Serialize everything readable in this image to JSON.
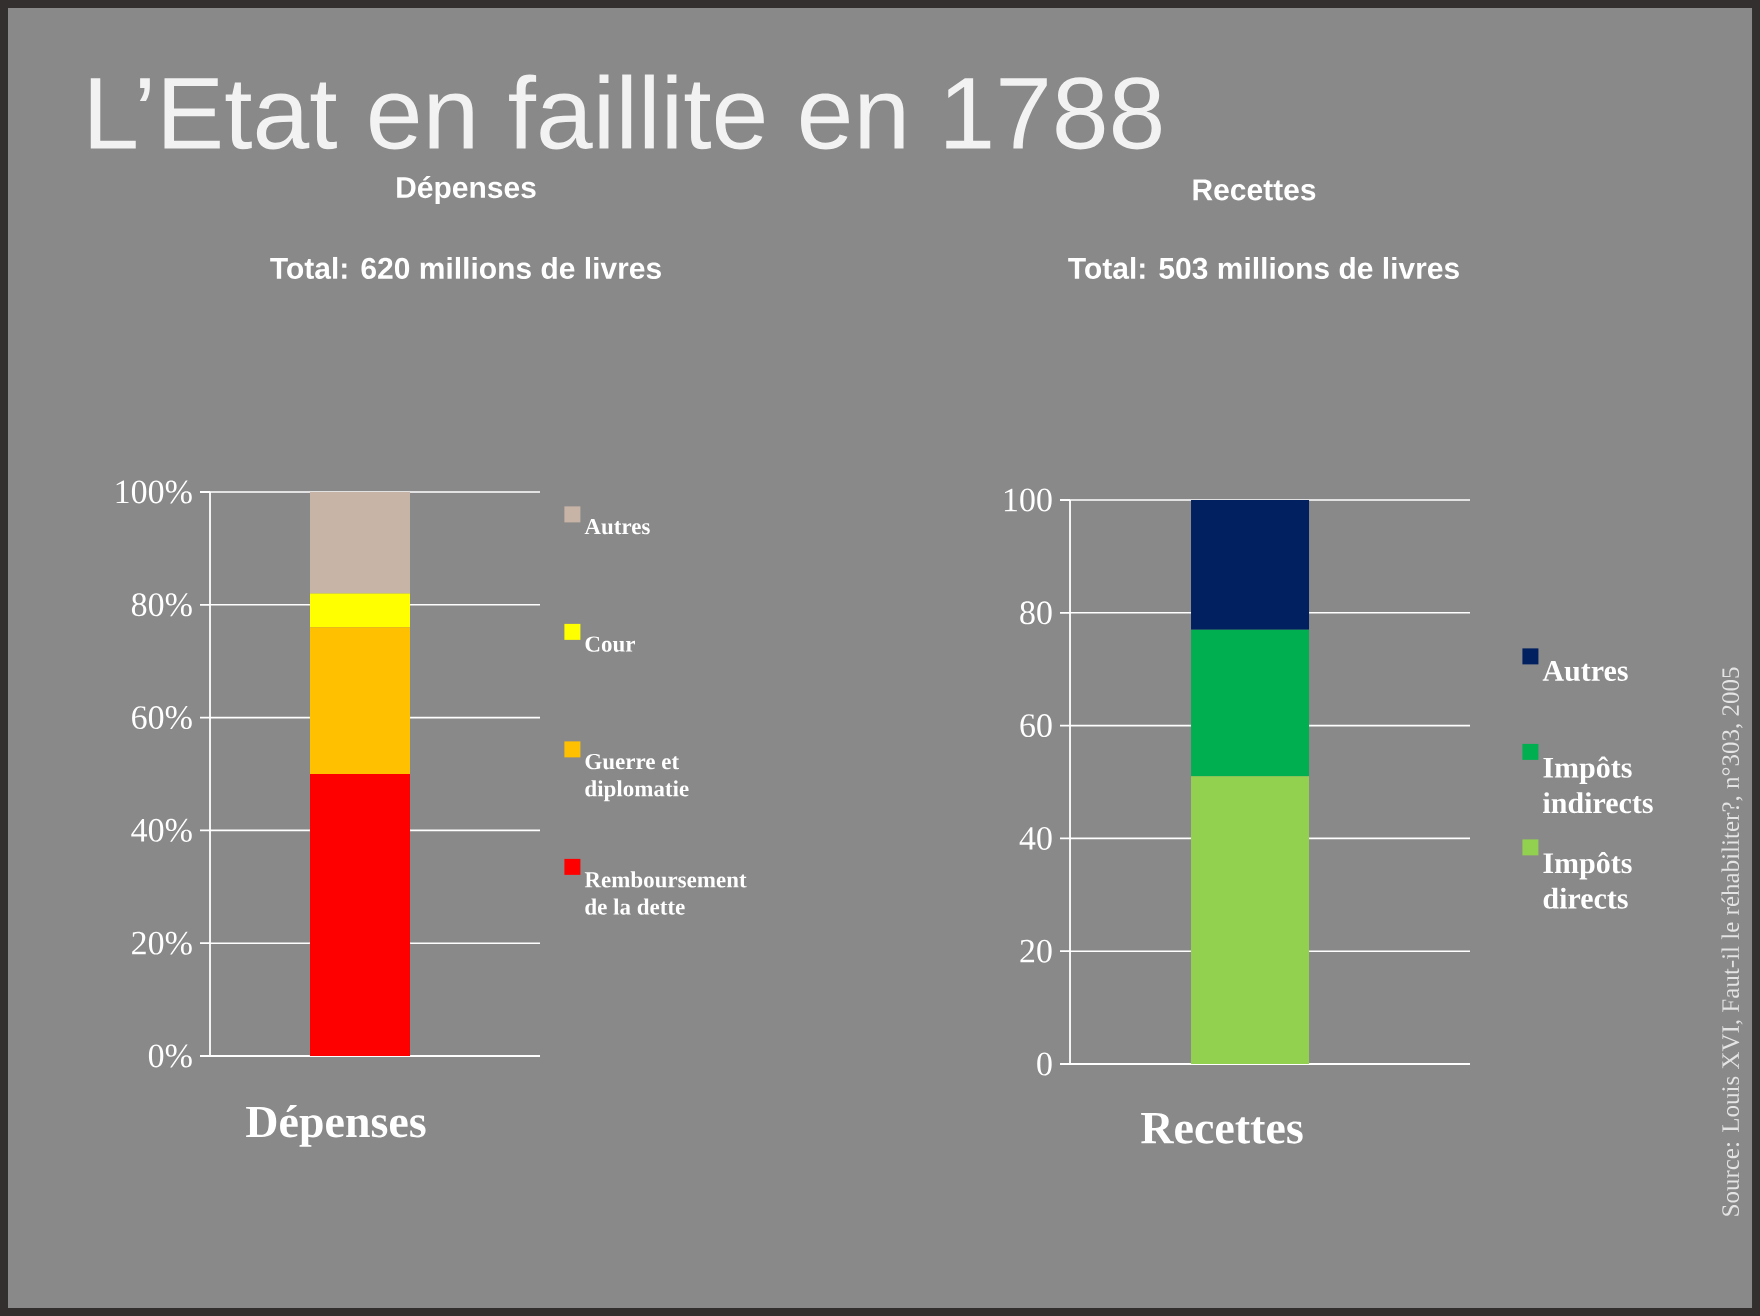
{
  "chart_data": [
    {
      "type": "bar",
      "title": "Dépenses",
      "subtitle": "Total: 620 millions de livres",
      "categories": [
        "Dépenses"
      ],
      "stacked": true,
      "series": [
        {
          "name": "Remboursement de la dette",
          "color": "#ff0000",
          "values": [
            50
          ]
        },
        {
          "name": "Guerre et diplomatie",
          "color": "#ffc000",
          "values": [
            26
          ]
        },
        {
          "name": "Cour",
          "color": "#ffff00",
          "values": [
            6
          ]
        },
        {
          "name": "Autres",
          "color": "#c8b4a7",
          "values": [
            18
          ]
        }
      ],
      "ylim": [
        0,
        100
      ],
      "yticks": [
        {
          "value": 0,
          "label": "0%"
        },
        {
          "value": 20,
          "label": "20%"
        },
        {
          "value": 40,
          "label": "40%"
        },
        {
          "value": 60,
          "label": "60%"
        },
        {
          "value": 80,
          "label": "80%"
        },
        {
          "value": 100,
          "label": "100%"
        }
      ],
      "grid": "y",
      "legend": "right",
      "annotations": [
        "L’Etat en faillite en 1788"
      ]
    },
    {
      "type": "bar",
      "title": "Recettes",
      "subtitle": "Total: 503 millions de livres",
      "categories": [
        "Recettes"
      ],
      "stacked": true,
      "series": [
        {
          "name": "Impôts directs",
          "color": "#92d050",
          "values": [
            51
          ]
        },
        {
          "name": "Impôts indirects",
          "color": "#00b050",
          "values": [
            26
          ]
        },
        {
          "name": "Autres",
          "color": "#002060",
          "values": [
            23
          ]
        }
      ],
      "ylim": [
        0,
        100
      ],
      "yticks": [
        0,
        20,
        40,
        60,
        80,
        100
      ],
      "grid": "y",
      "legend": "right",
      "annotations": [
        "Source: Louis XVI, Faut-il le réhabiliter?, n°303, 2005"
      ]
    }
  ]
}
